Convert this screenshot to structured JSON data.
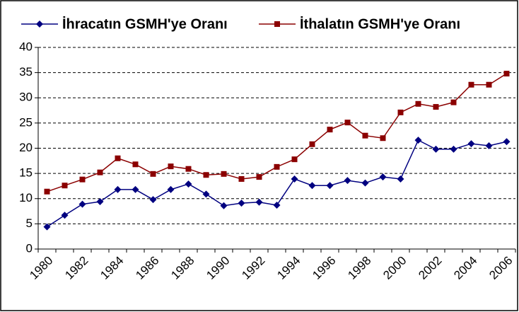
{
  "chart_data": {
    "type": "line",
    "categories": [
      1980,
      null,
      1982,
      null,
      1984,
      null,
      1986,
      null,
      1988,
      null,
      1990,
      null,
      1992,
      null,
      1994,
      null,
      1996,
      null,
      1998,
      null,
      2000,
      null,
      2002,
      null,
      2004,
      null,
      2006
    ],
    "series": [
      {
        "name": "İhracatın GSMH'ye Oranı",
        "color": "#000080",
        "marker": "diamond",
        "values": [
          4.4,
          6.7,
          8.9,
          9.4,
          11.8,
          11.8,
          9.8,
          11.8,
          12.9,
          10.9,
          8.6,
          9.1,
          9.3,
          8.7,
          13.9,
          12.6,
          12.6,
          13.6,
          13.1,
          14.3,
          13.9,
          21.6,
          19.8,
          19.8,
          20.9,
          20.5,
          21.3
        ]
      },
      {
        "name": "İthalatın GSMH'ye Oranı",
        "color": "#8b0000",
        "marker": "square",
        "values": [
          11.4,
          12.6,
          13.8,
          15.2,
          18.0,
          16.8,
          14.9,
          16.4,
          15.9,
          14.7,
          14.9,
          13.9,
          14.3,
          16.3,
          17.8,
          20.8,
          23.7,
          25.1,
          22.5,
          22.0,
          27.1,
          28.8,
          28.2,
          29.1,
          32.6,
          32.6,
          34.8
        ]
      }
    ],
    "ylim": [
      0,
      40
    ],
    "yticks": [
      0,
      5,
      10,
      15,
      20,
      25,
      30,
      35,
      40
    ],
    "grid": true,
    "legend": "top"
  }
}
